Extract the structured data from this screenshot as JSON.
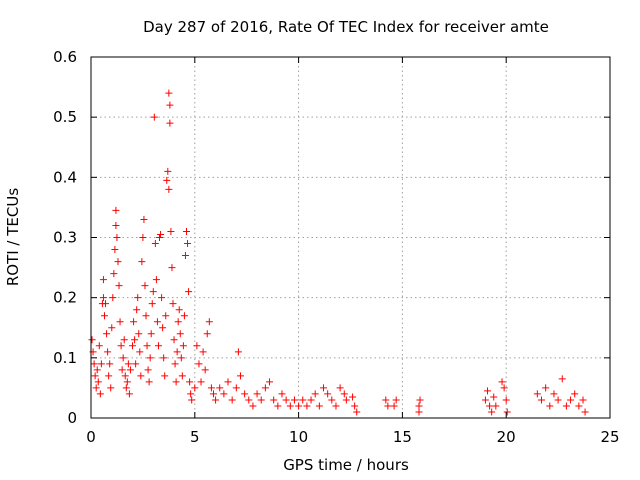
{
  "chart_data": {
    "type": "scatter",
    "title": "Day 287 of 2016, Rate Of TEC Index for receiver amte",
    "xlabel": "GPS time / hours",
    "ylabel": "ROTI / TECUs",
    "xlim": [
      0,
      25
    ],
    "ylim": [
      0,
      0.6
    ],
    "xticks": [
      0,
      5,
      10,
      15,
      20,
      25
    ],
    "yticks": [
      0,
      0.1,
      0.2,
      0.3,
      0.4,
      0.5,
      0.6
    ],
    "xtick_labels": [
      "0",
      "5",
      "10",
      "15",
      "20",
      "25"
    ],
    "ytick_labels": [
      "0",
      "0.1",
      "0.2",
      "0.3",
      "0.4",
      "0.5",
      "0.6"
    ],
    "grid": true,
    "marker": "+",
    "color": "#ff0000",
    "series": [
      {
        "name": "ROTI",
        "points": [
          [
            0.05,
            0.13
          ],
          [
            0.1,
            0.11
          ],
          [
            0.15,
            0.09
          ],
          [
            0.2,
            0.07
          ],
          [
            0.25,
            0.05
          ],
          [
            0.3,
            0.08
          ],
          [
            0.35,
            0.06
          ],
          [
            0.4,
            0.12
          ],
          [
            0.45,
            0.04
          ],
          [
            0.5,
            0.09
          ],
          [
            0.55,
            0.19
          ],
          [
            0.6,
            0.2
          ],
          [
            0.6,
            0.23
          ],
          [
            0.65,
            0.17
          ],
          [
            0.7,
            0.19
          ],
          [
            0.75,
            0.14
          ],
          [
            0.8,
            0.11
          ],
          [
            0.85,
            0.07
          ],
          [
            0.9,
            0.09
          ],
          [
            0.95,
            0.05
          ],
          [
            1.0,
            0.15
          ],
          [
            1.05,
            0.2
          ],
          [
            1.1,
            0.24
          ],
          [
            1.15,
            0.28
          ],
          [
            1.2,
            0.32
          ],
          [
            1.2,
            0.345
          ],
          [
            1.25,
            0.3
          ],
          [
            1.3,
            0.26
          ],
          [
            1.35,
            0.22
          ],
          [
            1.4,
            0.16
          ],
          [
            1.45,
            0.12
          ],
          [
            1.5,
            0.08
          ],
          [
            1.55,
            0.1
          ],
          [
            1.6,
            0.13
          ],
          [
            1.65,
            0.07
          ],
          [
            1.7,
            0.05
          ],
          [
            1.75,
            0.06
          ],
          [
            1.8,
            0.09
          ],
          [
            1.85,
            0.04
          ],
          [
            1.9,
            0.08
          ],
          [
            2.0,
            0.12
          ],
          [
            2.05,
            0.16
          ],
          [
            2.1,
            0.13
          ],
          [
            2.15,
            0.09
          ],
          [
            2.2,
            0.18
          ],
          [
            2.25,
            0.2
          ],
          [
            2.3,
            0.14
          ],
          [
            2.35,
            0.11
          ],
          [
            2.4,
            0.07
          ],
          [
            2.45,
            0.26
          ],
          [
            2.5,
            0.3
          ],
          [
            2.55,
            0.33
          ],
          [
            2.6,
            0.22
          ],
          [
            2.65,
            0.17
          ],
          [
            2.7,
            0.12
          ],
          [
            2.75,
            0.08
          ],
          [
            2.8,
            0.06
          ],
          [
            2.85,
            0.1
          ],
          [
            2.9,
            0.14
          ],
          [
            2.95,
            0.19
          ],
          [
            3.0,
            0.21
          ],
          [
            3.05,
            0.5
          ],
          [
            3.1,
            0.29
          ],
          [
            3.15,
            0.23
          ],
          [
            3.2,
            0.16
          ],
          [
            3.25,
            0.12
          ],
          [
            3.3,
            0.3
          ],
          [
            3.35,
            0.305
          ],
          [
            3.4,
            0.2
          ],
          [
            3.45,
            0.15
          ],
          [
            3.5,
            0.1
          ],
          [
            3.55,
            0.07
          ],
          [
            3.6,
            0.17
          ],
          [
            3.65,
            0.395
          ],
          [
            3.7,
            0.41
          ],
          [
            3.75,
            0.38
          ],
          [
            3.75,
            0.54
          ],
          [
            3.8,
            0.52
          ],
          [
            3.8,
            0.49
          ],
          [
            3.85,
            0.31
          ],
          [
            3.9,
            0.25
          ],
          [
            3.95,
            0.19
          ],
          [
            4.0,
            0.13
          ],
          [
            4.05,
            0.09
          ],
          [
            4.1,
            0.06
          ],
          [
            4.15,
            0.11
          ],
          [
            4.2,
            0.16
          ],
          [
            4.25,
            0.18
          ],
          [
            4.3,
            0.14
          ],
          [
            4.35,
            0.1
          ],
          [
            4.4,
            0.07
          ],
          [
            4.45,
            0.12
          ],
          [
            4.5,
            0.17
          ],
          [
            4.55,
            0.27
          ],
          [
            4.6,
            0.31
          ],
          [
            4.65,
            0.29
          ],
          [
            4.7,
            0.21
          ],
          [
            4.75,
            0.06
          ],
          [
            4.8,
            0.04
          ],
          [
            4.85,
            0.03
          ],
          [
            5.0,
            0.05
          ],
          [
            5.1,
            0.12
          ],
          [
            5.2,
            0.09
          ],
          [
            5.3,
            0.06
          ],
          [
            5.4,
            0.11
          ],
          [
            5.5,
            0.08
          ],
          [
            5.6,
            0.14
          ],
          [
            5.7,
            0.16
          ],
          [
            5.8,
            0.05
          ],
          [
            5.9,
            0.04
          ],
          [
            6.0,
            0.03
          ],
          [
            6.2,
            0.05
          ],
          [
            6.4,
            0.04
          ],
          [
            6.6,
            0.06
          ],
          [
            6.8,
            0.03
          ],
          [
            7.0,
            0.05
          ],
          [
            7.1,
            0.11
          ],
          [
            7.2,
            0.07
          ],
          [
            7.4,
            0.04
          ],
          [
            7.6,
            0.03
          ],
          [
            7.8,
            0.02
          ],
          [
            8.0,
            0.04
          ],
          [
            8.2,
            0.03
          ],
          [
            8.4,
            0.05
          ],
          [
            8.6,
            0.06
          ],
          [
            8.8,
            0.03
          ],
          [
            9.0,
            0.02
          ],
          [
            9.2,
            0.04
          ],
          [
            9.4,
            0.03
          ],
          [
            9.6,
            0.02
          ],
          [
            9.8,
            0.03
          ],
          [
            10.0,
            0.02
          ],
          [
            10.2,
            0.03
          ],
          [
            10.4,
            0.02
          ],
          [
            10.6,
            0.03
          ],
          [
            10.8,
            0.04
          ],
          [
            11.0,
            0.02
          ],
          [
            11.2,
            0.05
          ],
          [
            11.4,
            0.04
          ],
          [
            11.6,
            0.03
          ],
          [
            11.8,
            0.02
          ],
          [
            12.0,
            0.05
          ],
          [
            12.2,
            0.04
          ],
          [
            12.3,
            0.03
          ],
          [
            12.6,
            0.035
          ],
          [
            12.7,
            0.02
          ],
          [
            12.8,
            0.01
          ],
          [
            14.2,
            0.03
          ],
          [
            14.3,
            0.02
          ],
          [
            14.6,
            0.02
          ],
          [
            14.7,
            0.03
          ],
          [
            15.8,
            0.01
          ],
          [
            15.8,
            0.02
          ],
          [
            15.85,
            0.03
          ],
          [
            19.0,
            0.03
          ],
          [
            19.1,
            0.045
          ],
          [
            19.2,
            0.02
          ],
          [
            19.3,
            0.01
          ],
          [
            19.4,
            0.035
          ],
          [
            19.5,
            0.02
          ],
          [
            19.8,
            0.06
          ],
          [
            19.9,
            0.05
          ],
          [
            20.0,
            0.03
          ],
          [
            20.05,
            0.01
          ],
          [
            21.5,
            0.04
          ],
          [
            21.7,
            0.03
          ],
          [
            21.9,
            0.05
          ],
          [
            22.1,
            0.02
          ],
          [
            22.3,
            0.04
          ],
          [
            22.5,
            0.03
          ],
          [
            22.7,
            0.065
          ],
          [
            22.9,
            0.02
          ],
          [
            23.1,
            0.03
          ],
          [
            23.3,
            0.04
          ],
          [
            23.5,
            0.02
          ],
          [
            23.7,
            0.03
          ],
          [
            23.8,
            0.01
          ]
        ]
      }
    ]
  }
}
